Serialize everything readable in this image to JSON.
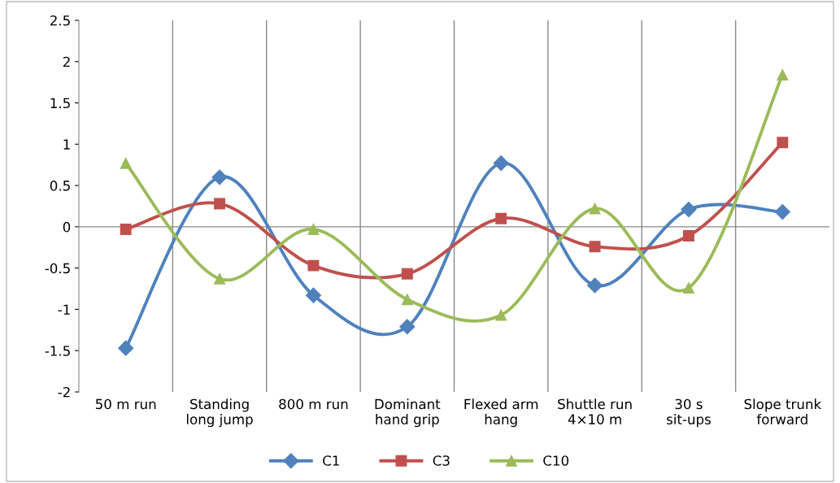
{
  "chart_data": {
    "type": "line",
    "categories": [
      "50 m run",
      "Standing\nlong jump",
      "800 m run",
      "Dominant\nhand grip",
      "Flexed arm\nhang",
      "Shuttle run\n4×10 m",
      "30 s\nsit-ups",
      "Slope trunk\nforward"
    ],
    "series": [
      {
        "name": "C1",
        "color": "#4f81bd",
        "marker": "diamond",
        "values": [
          -1.47,
          0.6,
          -0.83,
          -1.21,
          0.77,
          -0.71,
          0.21,
          0.18
        ]
      },
      {
        "name": "C3",
        "color": "#c0504d",
        "marker": "square",
        "values": [
          -0.03,
          0.28,
          -0.47,
          -0.57,
          0.1,
          -0.24,
          -0.11,
          1.02
        ]
      },
      {
        "name": "C10",
        "color": "#9bbb59",
        "marker": "triangle",
        "values": [
          0.77,
          -0.63,
          -0.03,
          -0.88,
          -1.07,
          0.22,
          -0.74,
          1.84
        ]
      }
    ],
    "ylim": [
      -2,
      2.5
    ],
    "yticks": [
      -2,
      -1.5,
      -1,
      -0.5,
      0,
      0.5,
      1,
      1.5,
      2,
      2.5
    ],
    "ref_lines": [
      {
        "axis": "y",
        "value": 0,
        "color": "#888888"
      }
    ],
    "grid": "x",
    "legend": "bottom",
    "line_style": "solid"
  }
}
